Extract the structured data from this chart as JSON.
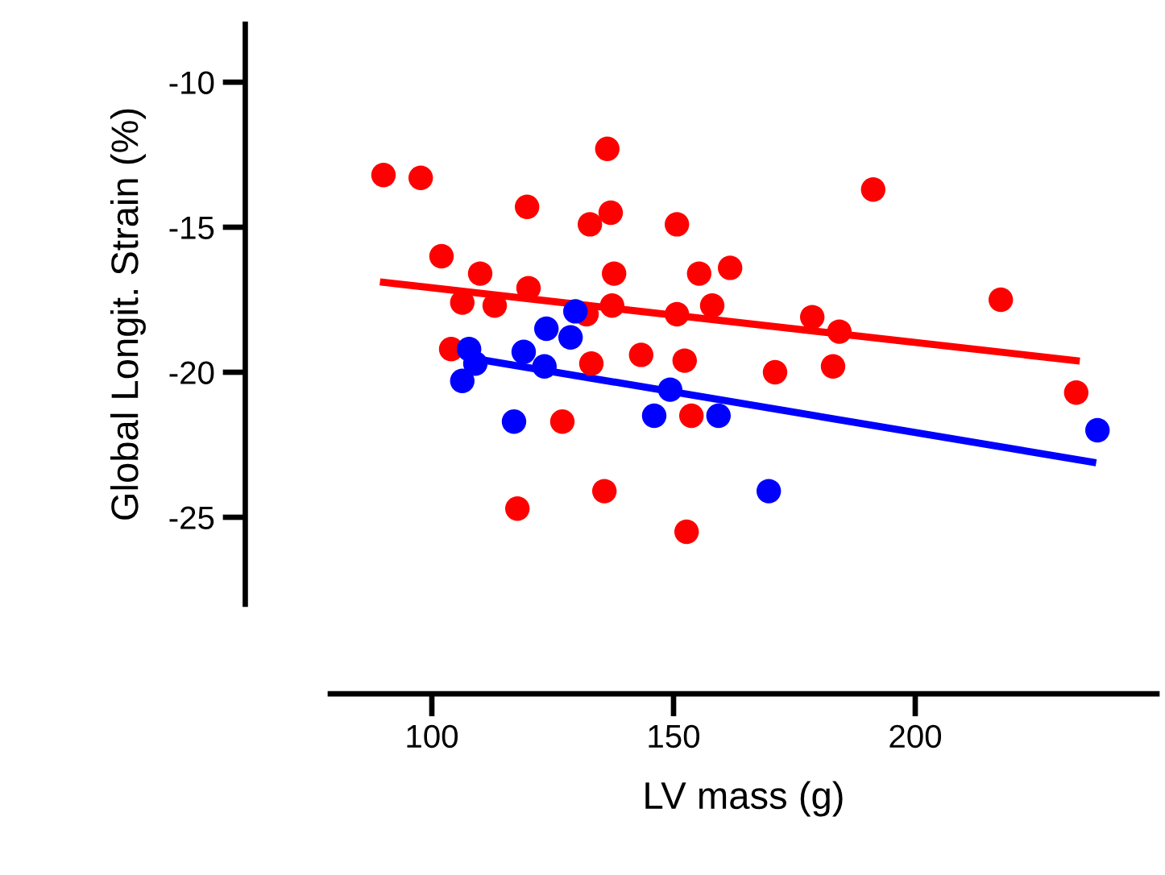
{
  "chart_data": {
    "type": "scatter",
    "xlabel": "LV mass (g)",
    "ylabel": "Global Longit. Strain (%)",
    "xlim": [
      79,
      250
    ],
    "ylim": [
      -28,
      -8
    ],
    "xticks": [
      100,
      150,
      200
    ],
    "yticks": [
      -10,
      -15,
      -20,
      -25
    ],
    "grid": false,
    "legend": false,
    "marker": "circle",
    "series": [
      {
        "color": "#ff0000",
        "x": [
          90.0,
          97.7,
          136.3,
          119.7,
          132.7,
          137.0,
          150.7,
          102.0,
          110.0,
          137.7,
          155.3,
          161.7,
          106.3,
          113.0,
          120.0,
          132.0,
          137.3,
          150.7,
          158.0,
          104.0,
          133.0,
          143.3,
          152.3,
          127.0,
          153.7,
          117.7,
          135.7,
          152.7,
          191.3,
          178.7,
          184.3,
          171.0,
          183.0,
          217.7,
          233.3
        ],
        "values": [
          -13.2,
          -13.3,
          -12.3,
          -14.3,
          -14.9,
          -14.5,
          -14.9,
          -16.0,
          -16.6,
          -16.6,
          -16.6,
          -16.4,
          -17.6,
          -17.7,
          -17.1,
          -18.0,
          -17.7,
          -18.0,
          -17.7,
          -19.2,
          -19.7,
          -19.4,
          -19.6,
          -21.7,
          -21.5,
          -24.7,
          -24.1,
          -25.5,
          -13.7,
          -18.1,
          -18.6,
          -20.0,
          -19.8,
          -17.5,
          -20.7
        ]
      },
      {
        "color": "#0000ff",
        "x": [
          129.7,
          123.7,
          128.7,
          107.7,
          109.0,
          119.0,
          123.3,
          106.3,
          117.0,
          149.3,
          146.0,
          159.3,
          169.7,
          237.7
        ],
        "values": [
          -17.9,
          -18.5,
          -18.8,
          -19.2,
          -19.7,
          -19.3,
          -19.8,
          -20.3,
          -21.7,
          -20.6,
          -21.5,
          -21.5,
          -24.1,
          -22.0
        ]
      },
      {
        "type": "line",
        "color": "#ff0000",
        "x": [
          90.0,
          233.3
        ],
        "values": [
          -16.9,
          -19.6
        ],
        "marker": "none",
        "line_style": "solid"
      },
      {
        "type": "line",
        "color": "#0000ff",
        "x": [
          107.7,
          236.7
        ],
        "values": [
          -19.5,
          -23.1
        ],
        "marker": "none",
        "line_style": "solid"
      }
    ]
  }
}
